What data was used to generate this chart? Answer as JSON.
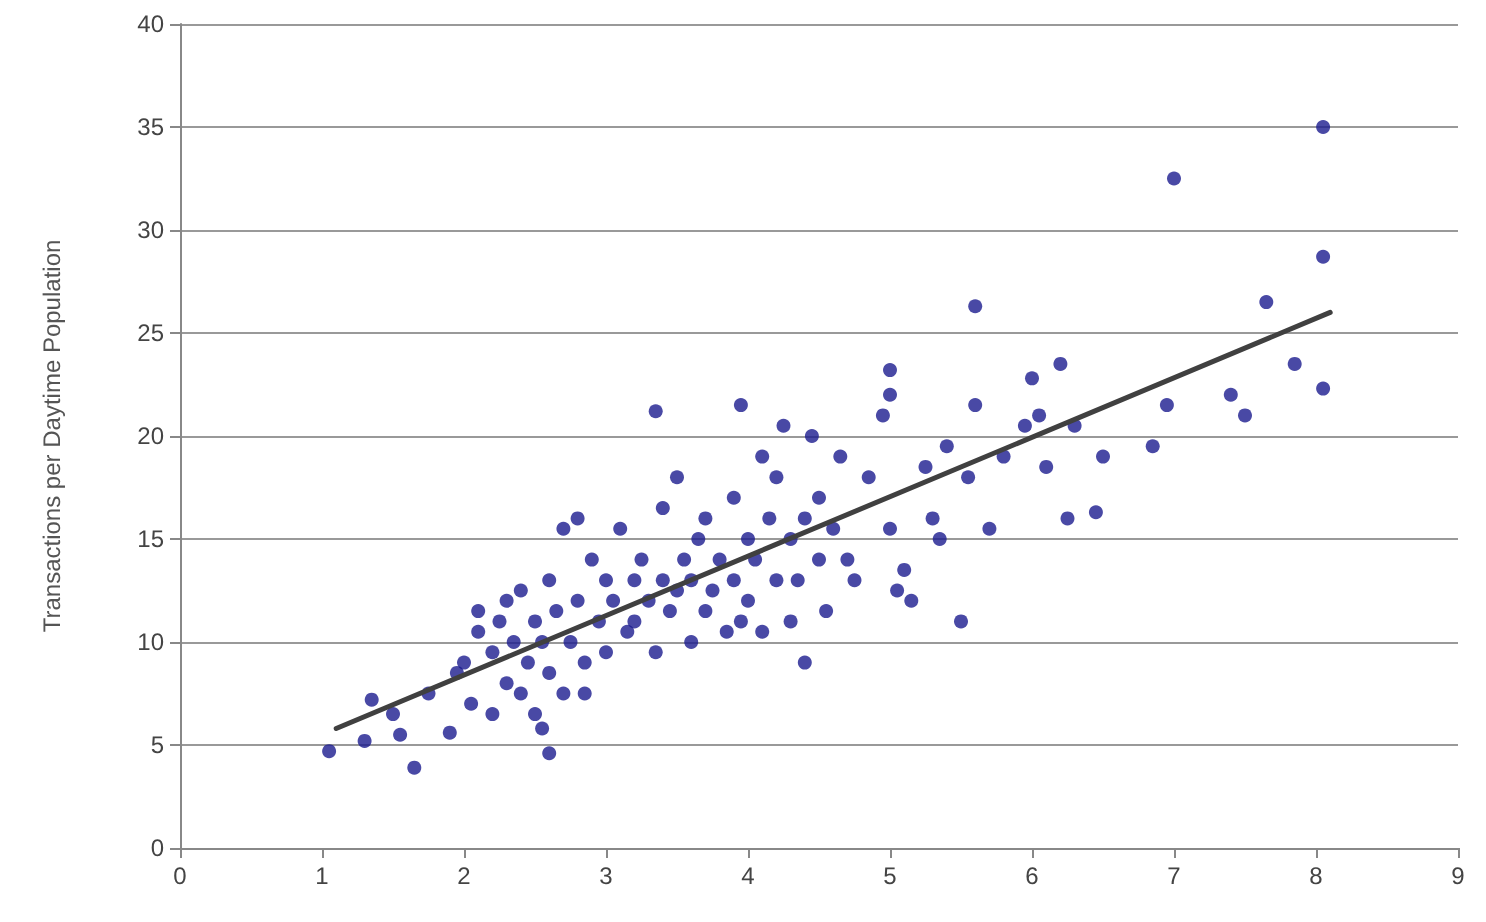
{
  "chart_data": {
    "type": "scatter",
    "ylabel": "Transactions per Daytime Population",
    "xlim": [
      0,
      9
    ],
    "xticks": [
      0,
      1,
      2,
      3,
      4,
      5,
      6,
      7,
      8,
      9
    ],
    "ylim": [
      0,
      40
    ],
    "yticks": [
      0,
      5,
      10,
      15,
      20,
      25,
      30,
      35,
      40
    ],
    "grid": "y",
    "marker": "circle",
    "series": [
      {
        "color": "#1c1c8f",
        "x": [
          1.05,
          1.3,
          1.35,
          1.5,
          1.55,
          1.65,
          1.75,
          1.9,
          1.95,
          2.0,
          2.05,
          2.1,
          2.1,
          2.2,
          2.2,
          2.25,
          2.3,
          2.3,
          2.35,
          2.4,
          2.4,
          2.45,
          2.5,
          2.5,
          2.55,
          2.55,
          2.6,
          2.6,
          2.6,
          2.65,
          2.7,
          2.7,
          2.75,
          2.8,
          2.8,
          2.85,
          2.85,
          2.9,
          2.95,
          3.0,
          3.0,
          3.05,
          3.1,
          3.15,
          3.2,
          3.2,
          3.25,
          3.3,
          3.35,
          3.35,
          3.4,
          3.4,
          3.45,
          3.5,
          3.5,
          3.55,
          3.6,
          3.6,
          3.65,
          3.7,
          3.7,
          3.75,
          3.8,
          3.85,
          3.9,
          3.9,
          3.95,
          3.95,
          4.0,
          4.0,
          4.05,
          4.1,
          4.1,
          4.15,
          4.2,
          4.2,
          4.25,
          4.3,
          4.3,
          4.35,
          4.4,
          4.4,
          4.45,
          4.5,
          4.5,
          4.55,
          4.6,
          4.65,
          4.7,
          4.75,
          4.85,
          4.95,
          5.0,
          5.0,
          5.0,
          5.05,
          5.1,
          5.15,
          5.25,
          5.3,
          5.35,
          5.4,
          5.5,
          5.55,
          5.6,
          5.6,
          5.7,
          5.8,
          5.95,
          6.0,
          6.05,
          6.1,
          6.2,
          6.25,
          6.3,
          6.45,
          6.5,
          6.85,
          6.95,
          7.0,
          7.4,
          7.5,
          7.65,
          7.85,
          8.05,
          8.05,
          8.05
        ],
        "values": [
          4.7,
          5.2,
          7.2,
          6.5,
          5.5,
          3.9,
          7.5,
          5.6,
          8.5,
          9.0,
          7.0,
          10.5,
          11.5,
          6.5,
          9.5,
          11,
          8,
          12,
          10,
          7.5,
          12.5,
          9,
          6.5,
          11,
          5.8,
          10,
          4.6,
          13,
          8.5,
          11.5,
          7.5,
          15.5,
          10,
          12,
          16,
          9,
          7.5,
          14,
          11,
          9.5,
          13,
          12,
          15.5,
          10.5,
          13,
          11,
          14,
          12,
          21.2,
          9.5,
          16.5,
          13,
          11.5,
          12.5,
          18,
          14,
          10,
          13,
          15,
          11.5,
          16,
          12.5,
          14,
          10.5,
          13,
          17,
          21.5,
          11,
          15,
          12,
          14,
          19,
          10.5,
          16,
          13,
          18,
          20.5,
          11,
          15,
          13,
          16,
          9,
          20,
          14,
          17,
          11.5,
          15.5,
          19,
          14,
          13,
          18,
          21,
          23.2,
          22,
          15.5,
          12.5,
          13.5,
          12,
          18.5,
          16,
          15,
          19.5,
          11,
          18,
          26.3,
          21.5,
          15.5,
          19,
          20.5,
          22.8,
          21,
          18.5,
          23.5,
          16,
          20.5,
          16.3,
          19,
          19.5,
          21.5,
          32.5,
          22,
          21,
          26.5,
          23.5,
          35,
          28.7,
          22.3
        ]
      },
      {
        "type": "line",
        "color": "#404040",
        "marker": "none",
        "x": [
          1.1,
          8.1
        ],
        "values": [
          5.8,
          26
        ]
      }
    ]
  }
}
